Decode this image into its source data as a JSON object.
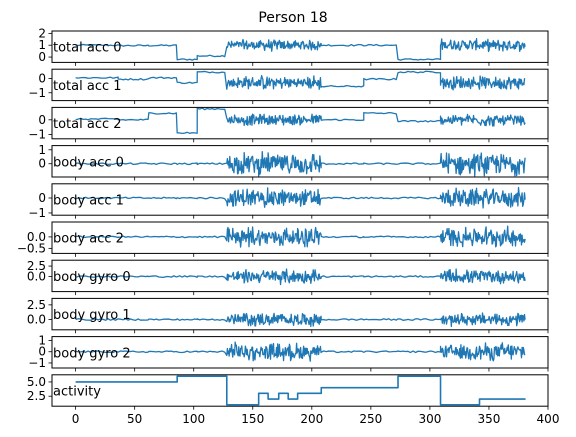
{
  "chart_data": {
    "type": "line",
    "title": "Person 18",
    "series_color": "#1f77b4",
    "shared_x_axis": {
      "xlim": [
        -20,
        400
      ],
      "ticks": [
        0,
        50,
        100,
        150,
        200,
        250,
        300,
        350,
        400
      ],
      "tick_labels": [
        "0",
        "50",
        "100",
        "150",
        "200",
        "250",
        "300",
        "350",
        "400"
      ]
    },
    "segments": {
      "boundaries": [
        0,
        36,
        62,
        86,
        103,
        128,
        155,
        163,
        172,
        180,
        188,
        208,
        244,
        273,
        309,
        342,
        381
      ],
      "activities": [
        5,
        5,
        5,
        6,
        6,
        1,
        3,
        2,
        3,
        2,
        3,
        4,
        4,
        6,
        1,
        2
      ],
      "dynamic": [
        false,
        false,
        false,
        false,
        false,
        true,
        true,
        true,
        true,
        true,
        true,
        false,
        false,
        false,
        true,
        true
      ]
    },
    "panels": [
      {
        "label": "total acc 0",
        "ylim": [
          -0.45,
          2.2
        ],
        "yticks": [
          0,
          1,
          2
        ],
        "ytick_labels": [
          "0",
          "1",
          "2"
        ],
        "levels": [
          1.0,
          0.97,
          0.98,
          -0.2,
          0.1,
          0.0,
          0.0,
          0.0,
          0.0,
          0.0,
          0.0,
          1.0,
          1.0,
          -0.2,
          0.0,
          0.0
        ],
        "centers": [
          1.0,
          0.97,
          0.98,
          -0.2,
          0.1,
          1.0,
          1.0,
          1.0,
          1.0,
          1.0,
          1.0,
          1.0,
          1.0,
          -0.2,
          1.05,
          0.98
        ],
        "amplitude": 0.55
      },
      {
        "label": "total acc 1",
        "ylim": [
          -1.55,
          0.65
        ],
        "yticks": [
          0,
          -1
        ],
        "ytick_labels": [
          "0",
          "−1"
        ],
        "levels": [
          0.05,
          -0.05,
          0.05,
          -0.3,
          0.45,
          0.0,
          0.0,
          0.0,
          0.0,
          0.0,
          0.0,
          -0.55,
          -0.05,
          0.45,
          0.0,
          0.0
        ],
        "centers": [
          0.05,
          -0.05,
          0.05,
          -0.3,
          0.45,
          -0.3,
          -0.3,
          -0.3,
          -0.3,
          -0.3,
          -0.3,
          -0.55,
          -0.05,
          0.45,
          -0.3,
          -0.3
        ],
        "amplitude": 0.55
      },
      {
        "label": "total acc 2",
        "ylim": [
          -1.3,
          0.85
        ],
        "yticks": [
          0,
          -1
        ],
        "ytick_labels": [
          "0",
          "−1"
        ],
        "levels": [
          0.05,
          0.0,
          0.45,
          -0.9,
          0.75,
          0.0,
          0.0,
          0.0,
          0.0,
          0.0,
          0.0,
          0.0,
          0.45,
          -0.1,
          0.0,
          0.0
        ],
        "centers": [
          0.05,
          0.0,
          0.45,
          -0.9,
          0.75,
          0.0,
          0.0,
          0.0,
          0.0,
          0.0,
          0.0,
          0.0,
          0.45,
          -0.1,
          0.0,
          -0.05
        ],
        "amplitude": 0.45
      },
      {
        "label": "body acc 0",
        "ylim": [
          -0.95,
          1.3
        ],
        "yticks": [
          1,
          0
        ],
        "ytick_labels": [
          "1",
          "0"
        ],
        "levels": [
          0,
          0,
          0,
          0,
          0,
          0,
          0,
          0,
          0,
          0,
          0,
          0,
          0,
          0,
          0,
          0
        ],
        "centers": [
          0,
          0,
          0,
          0,
          0,
          0,
          0,
          0,
          0,
          0,
          0,
          0,
          0,
          0,
          0,
          0
        ],
        "amplitude": 0.9
      },
      {
        "label": "body acc 1",
        "ylim": [
          -1.15,
          0.95
        ],
        "yticks": [
          0,
          -1
        ],
        "ytick_labels": [
          "0",
          "−1"
        ],
        "levels": [
          0,
          0,
          0,
          0,
          0,
          0,
          0,
          0,
          0,
          0,
          0,
          0,
          0,
          0,
          0,
          0
        ],
        "centers": [
          0,
          0,
          0,
          0,
          0,
          0,
          0,
          0,
          0,
          0,
          0,
          0,
          0,
          0,
          0,
          0
        ],
        "amplitude": 0.75
      },
      {
        "label": "body acc 2",
        "ylim": [
          -0.72,
          0.65
        ],
        "yticks": [
          0.0,
          -0.5
        ],
        "ytick_labels": [
          "0.0",
          "−0.5"
        ],
        "levels": [
          0,
          0,
          0,
          0,
          0,
          0,
          0,
          0,
          0,
          0,
          0,
          0,
          0,
          0,
          0,
          0
        ],
        "centers": [
          0,
          0,
          0,
          0,
          0,
          0,
          0,
          0,
          0,
          0,
          0,
          0,
          0,
          0,
          0,
          0
        ],
        "amplitude": 0.5
      },
      {
        "label": "body gyro 0",
        "ylim": [
          -3.6,
          3.9
        ],
        "yticks": [
          2.5,
          0.0
        ],
        "ytick_labels": [
          "2.5",
          "0.0"
        ],
        "levels": [
          0,
          0,
          0,
          0,
          0,
          0,
          0,
          0,
          0,
          0,
          0,
          0,
          0,
          0,
          0,
          0
        ],
        "centers": [
          0,
          0,
          0,
          0,
          0,
          0,
          0,
          0,
          0,
          0,
          0,
          0,
          0,
          0,
          0,
          0
        ],
        "amplitude": 2.0
      },
      {
        "label": "body gyro 1",
        "ylim": [
          -1.75,
          3.6
        ],
        "yticks": [
          2.5,
          0.0
        ],
        "ytick_labels": [
          "2.5",
          "0.0"
        ],
        "levels": [
          0,
          0,
          0,
          0,
          0,
          0,
          0,
          0,
          0,
          0,
          0,
          0,
          0,
          0,
          0,
          0
        ],
        "centers": [
          0,
          0,
          0,
          0,
          0,
          0,
          0,
          0,
          0,
          0,
          0,
          0,
          0,
          0,
          0,
          0
        ],
        "amplitude": 1.3
      },
      {
        "label": "body gyro 2",
        "ylim": [
          -1.45,
          1.35
        ],
        "yticks": [
          1,
          0,
          -1
        ],
        "ytick_labels": [
          "1",
          "0",
          "−1"
        ],
        "levels": [
          0,
          0,
          0,
          0,
          0,
          0,
          0,
          0,
          0,
          0,
          0,
          0,
          0,
          0,
          0,
          0
        ],
        "centers": [
          0,
          0,
          0,
          0,
          0,
          0,
          0,
          0,
          0,
          0,
          0,
          0,
          0,
          0,
          0,
          0
        ],
        "amplitude": 0.9
      },
      {
        "label": "activity",
        "ylim": [
          0.75,
          6.25
        ],
        "yticks": [
          5.0,
          2.5
        ],
        "ytick_labels": [
          "5.0",
          "2.5"
        ],
        "step_series": "activity"
      }
    ]
  }
}
